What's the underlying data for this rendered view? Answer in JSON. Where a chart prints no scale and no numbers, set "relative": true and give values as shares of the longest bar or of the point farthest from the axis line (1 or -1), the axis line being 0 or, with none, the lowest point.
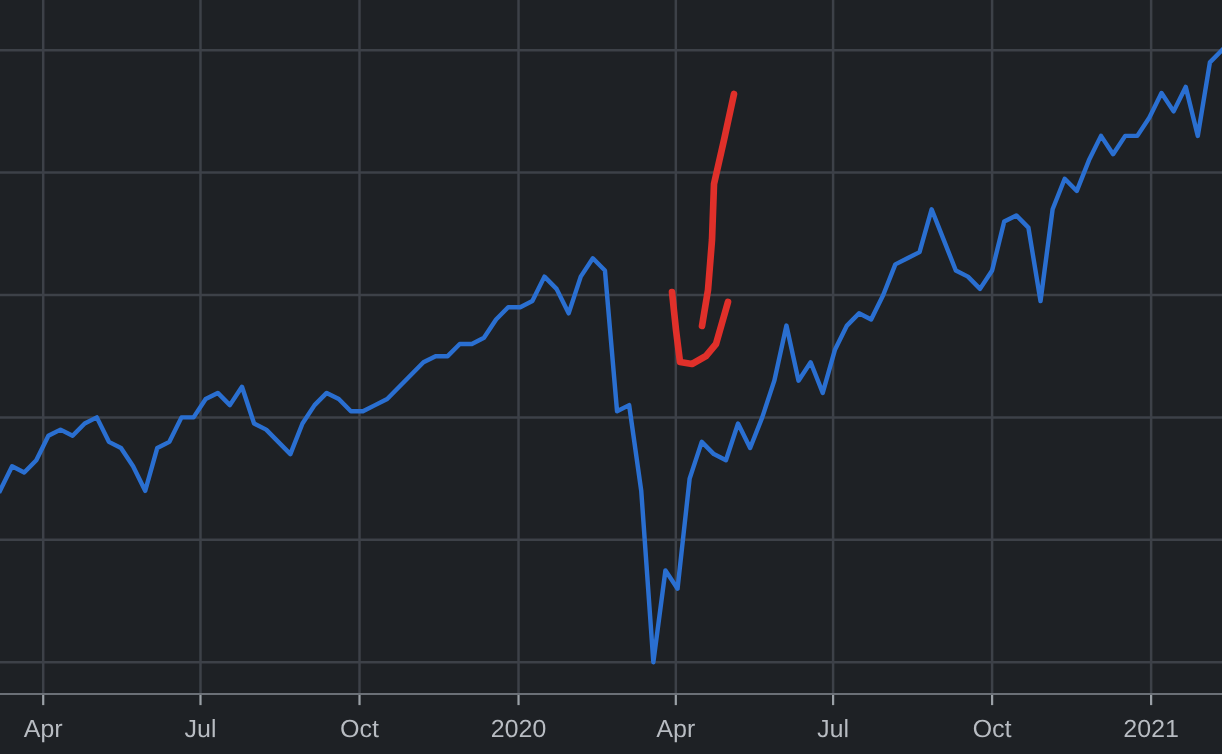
{
  "chart_data": {
    "type": "line",
    "relative": true,
    "grid": true,
    "color": "#2a6fd1",
    "line_style": "solid",
    "marker": "none",
    "x": [
      "2019-03-07",
      "2019-03-14",
      "2019-03-21",
      "2019-03-28",
      "2019-04-04",
      "2019-04-11",
      "2019-04-18",
      "2019-04-25",
      "2019-05-02",
      "2019-05-09",
      "2019-05-16",
      "2019-05-23",
      "2019-05-30",
      "2019-06-06",
      "2019-06-13",
      "2019-06-20",
      "2019-06-27",
      "2019-07-04",
      "2019-07-11",
      "2019-07-18",
      "2019-07-25",
      "2019-08-01",
      "2019-08-08",
      "2019-08-15",
      "2019-08-22",
      "2019-08-29",
      "2019-09-05",
      "2019-09-12",
      "2019-09-19",
      "2019-09-26",
      "2019-10-03",
      "2019-10-10",
      "2019-10-17",
      "2019-10-24",
      "2019-10-31",
      "2019-11-07",
      "2019-11-14",
      "2019-11-21",
      "2019-11-28",
      "2019-12-05",
      "2019-12-12",
      "2019-12-19",
      "2019-12-26",
      "2020-01-02",
      "2020-01-09",
      "2020-01-16",
      "2020-01-23",
      "2020-01-30",
      "2020-02-06",
      "2020-02-13",
      "2020-02-20",
      "2020-02-27",
      "2020-03-05",
      "2020-03-12",
      "2020-03-19",
      "2020-03-26",
      "2020-04-02",
      "2020-04-09",
      "2020-04-16",
      "2020-04-23",
      "2020-04-30",
      "2020-05-07",
      "2020-05-14",
      "2020-05-21",
      "2020-05-28",
      "2020-06-04",
      "2020-06-11",
      "2020-06-18",
      "2020-06-25",
      "2020-07-02",
      "2020-07-09",
      "2020-07-16",
      "2020-07-23",
      "2020-07-30",
      "2020-08-06",
      "2020-08-13",
      "2020-08-20",
      "2020-08-27",
      "2020-09-03",
      "2020-09-10",
      "2020-09-17",
      "2020-09-24",
      "2020-10-01",
      "2020-10-08",
      "2020-10-15",
      "2020-10-22",
      "2020-10-29",
      "2020-11-05",
      "2020-11-12",
      "2020-11-19",
      "2020-11-26",
      "2020-12-03",
      "2020-12-10",
      "2020-12-17",
      "2020-12-24",
      "2020-12-31",
      "2021-01-07",
      "2021-01-14",
      "2021-01-21",
      "2021-01-28",
      "2021-02-04",
      "2021-02-11"
    ],
    "values": [
      0.28,
      0.32,
      0.31,
      0.33,
      0.37,
      0.38,
      0.37,
      0.39,
      0.4,
      0.36,
      0.35,
      0.32,
      0.28,
      0.35,
      0.36,
      0.4,
      0.4,
      0.43,
      0.44,
      0.42,
      0.45,
      0.39,
      0.38,
      0.36,
      0.34,
      0.39,
      0.42,
      0.44,
      0.43,
      0.41,
      0.41,
      0.42,
      0.43,
      0.45,
      0.47,
      0.49,
      0.5,
      0.5,
      0.52,
      0.52,
      0.53,
      0.56,
      0.58,
      0.58,
      0.59,
      0.63,
      0.61,
      0.57,
      0.63,
      0.66,
      0.64,
      0.41,
      0.42,
      0.28,
      0,
      0.15,
      0.12,
      0.3,
      0.36,
      0.34,
      0.33,
      0.39,
      0.35,
      0.4,
      0.46,
      0.55,
      0.46,
      0.49,
      0.44,
      0.51,
      0.55,
      0.57,
      0.56,
      0.6,
      0.65,
      0.66,
      0.67,
      0.74,
      0.69,
      0.64,
      0.63,
      0.61,
      0.64,
      0.72,
      0.73,
      0.71,
      0.59,
      0.74,
      0.79,
      0.77,
      0.82,
      0.86,
      0.83,
      0.86,
      0.86,
      0.89,
      0.93,
      0.9,
      0.94,
      0.86,
      0.98,
      1
    ],
    "xlim": [
      "2019-03-07",
      "2021-02-11"
    ],
    "xticks": [
      {
        "value": "2019-04-01",
        "label": "Apr"
      },
      {
        "value": "2019-07-01",
        "label": "Jul"
      },
      {
        "value": "2019-10-01",
        "label": "Oct"
      },
      {
        "value": "2020-01-01",
        "label": "2020"
      },
      {
        "value": "2020-04-01",
        "label": "Apr"
      },
      {
        "value": "2020-07-01",
        "label": "Jul"
      },
      {
        "value": "2020-10-01",
        "label": "Oct"
      },
      {
        "value": "2021-01-01",
        "label": "2021"
      }
    ]
  }
}
